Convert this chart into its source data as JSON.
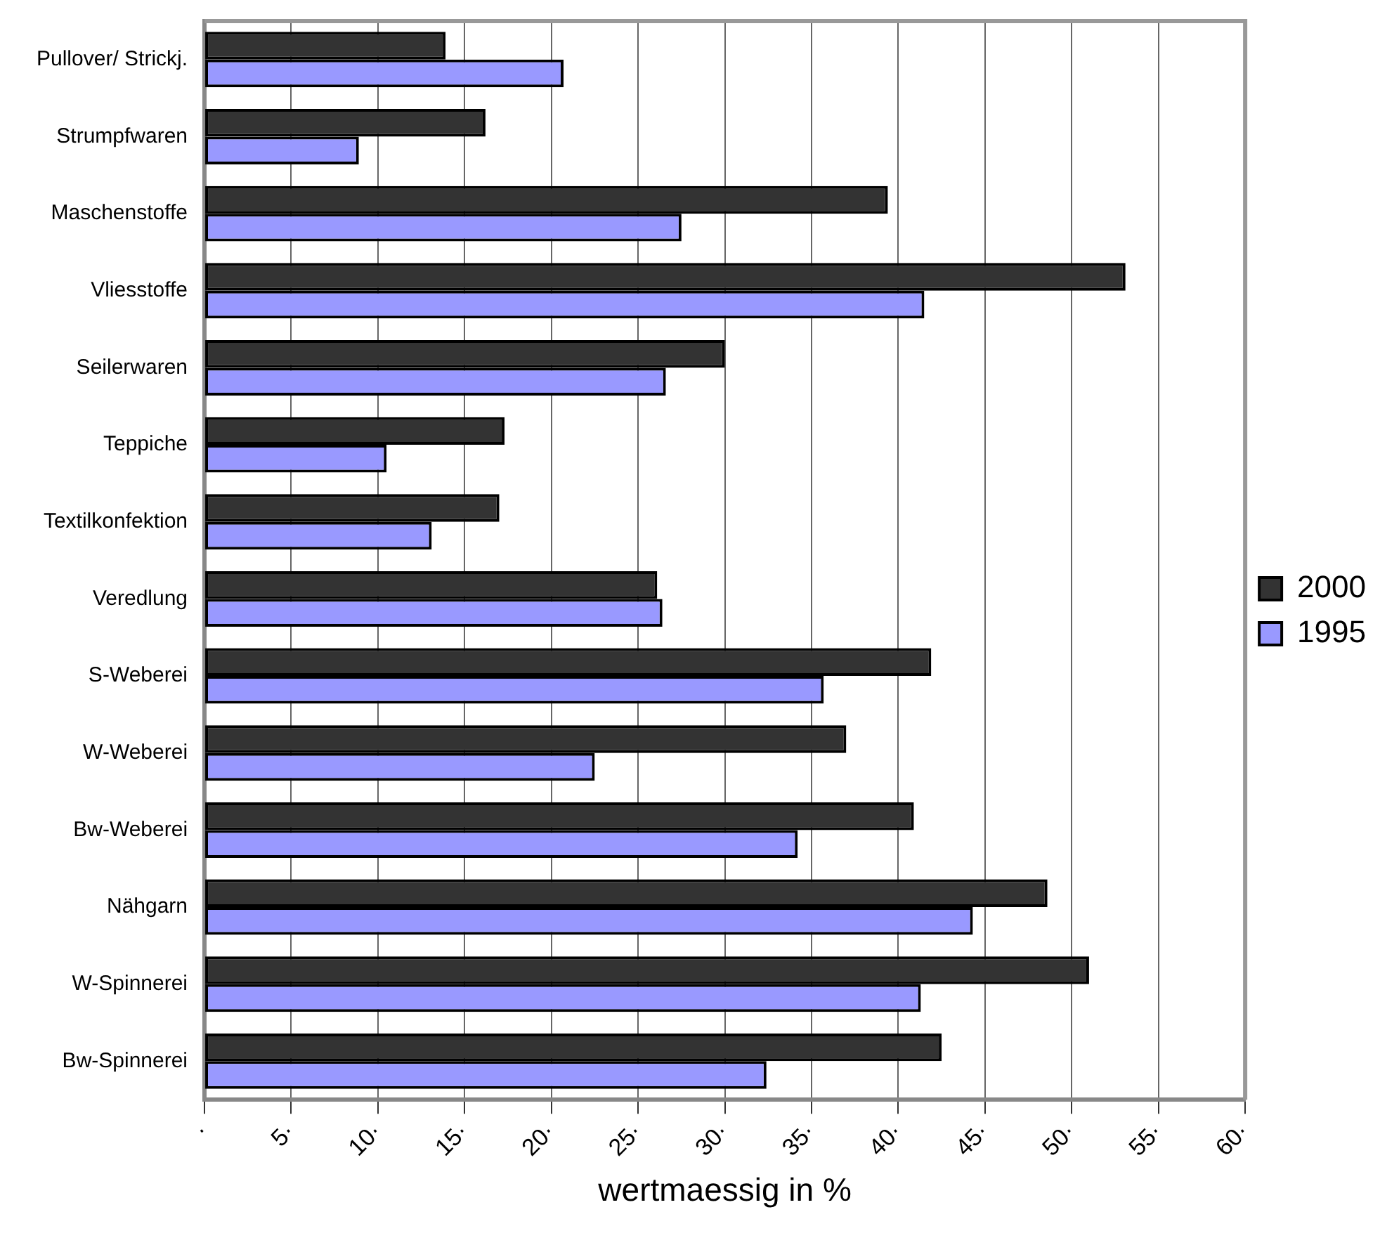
{
  "chart_data": {
    "type": "bar",
    "orientation": "horizontal",
    "xlabel": "wertmaessig in %",
    "categories": [
      "Pullover/ Strickj.",
      "Strumpfwaren",
      "Maschenstoffe",
      "Vliesstoffe",
      "Seilerwaren",
      "Teppiche",
      "Textilkonfektion",
      "Veredlung",
      "S-Weberei",
      "W-Weberei",
      "Bw-Weberei",
      "Nähgarn",
      "W-Spinnerei",
      "Bw-Spinnerei"
    ],
    "series": [
      {
        "name": "2000",
        "color": "#333333",
        "values": [
          13.9,
          16.2,
          39.4,
          53.1,
          30.0,
          17.3,
          17.0,
          26.1,
          41.9,
          37.0,
          40.9,
          48.6,
          51.0,
          42.5
        ]
      },
      {
        "name": "1995",
        "color": "#9999ff",
        "values": [
          20.7,
          8.9,
          27.5,
          41.5,
          26.6,
          10.5,
          13.1,
          26.4,
          35.7,
          22.5,
          34.2,
          44.3,
          41.3,
          32.4
        ]
      }
    ],
    "xlim": [
      0,
      60
    ],
    "xticks": [
      {
        "value": 0,
        "label": "·"
      },
      {
        "value": 5,
        "label": "5·"
      },
      {
        "value": 10,
        "label": "10·"
      },
      {
        "value": 15,
        "label": "15·"
      },
      {
        "value": 20,
        "label": "20·"
      },
      {
        "value": 25,
        "label": "25·"
      },
      {
        "value": 30,
        "label": "30·"
      },
      {
        "value": 35,
        "label": "35·"
      },
      {
        "value": 40,
        "label": "40·"
      },
      {
        "value": 45,
        "label": "45·"
      },
      {
        "value": 50,
        "label": "50·"
      },
      {
        "value": 55,
        "label": "55·"
      },
      {
        "value": 60,
        "label": "60·"
      }
    ],
    "grid": "x",
    "legend": "right"
  }
}
